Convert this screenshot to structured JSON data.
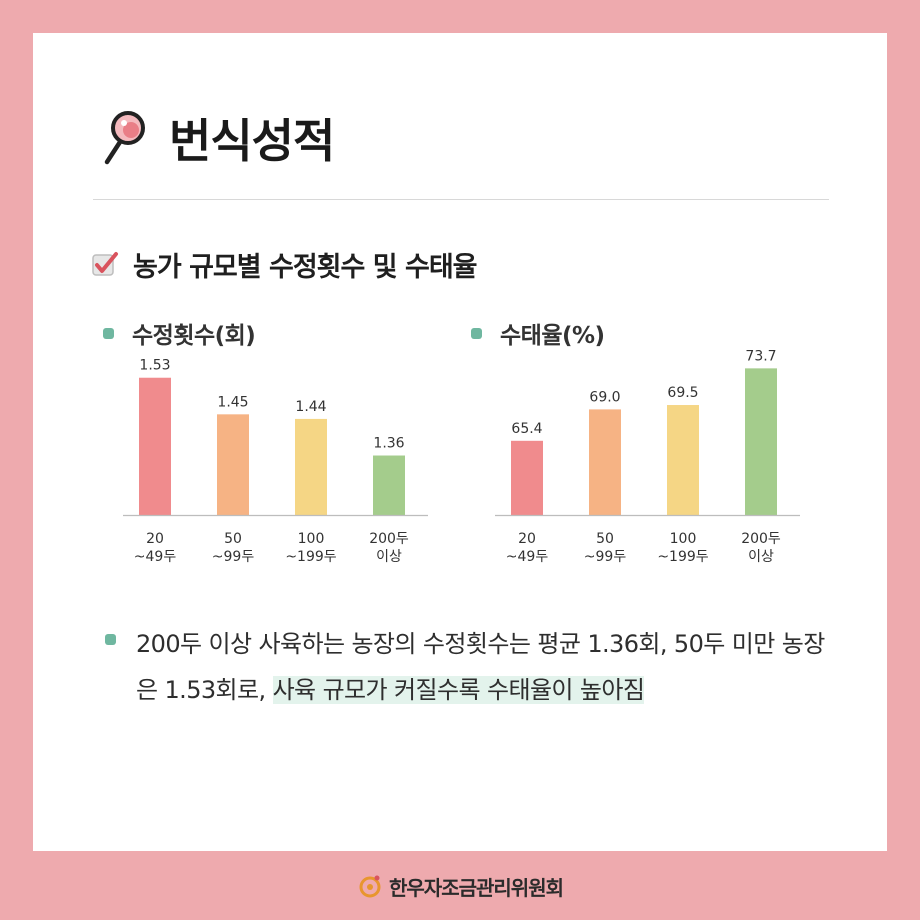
{
  "page": {
    "title": "번식성적",
    "section_title": "농가 규모별 수정횟수 및 수태율",
    "footer_org": "한우자조금관리위원회",
    "colors": {
      "background": "#EEAAAE",
      "card": "#FFFFFF",
      "bullet": "#6FB7A0",
      "highlight": "#E3F3EC"
    },
    "icons": [
      "magnifier-icon",
      "checkbox-icon",
      "hanwoo-logo-icon"
    ]
  },
  "note": {
    "part1": "200두 이상 사육하는 농장의 수정횟수는 평균 1.36회, 50두 미만 농장은 1.53회로, ",
    "highlight": "사육 규모가 커질수록 수태율이 높아짐"
  },
  "chart_data": [
    {
      "type": "bar",
      "title": "수정횟수(회)",
      "categories": [
        [
          "20",
          "~49두"
        ],
        [
          "50",
          "~99두"
        ],
        [
          "100",
          "~199두"
        ],
        [
          "200두",
          "이상"
        ]
      ],
      "values": [
        1.53,
        1.45,
        1.44,
        1.36
      ],
      "value_labels": [
        "1.53",
        "1.45",
        "1.44",
        "1.36"
      ],
      "colors": [
        "#F08B8D",
        "#F6B384",
        "#F5D685",
        "#A4CC8C"
      ],
      "ylim": [
        1.23,
        1.56
      ]
    },
    {
      "type": "bar",
      "title": "수태율(%)",
      "categories": [
        [
          "20",
          "~49두"
        ],
        [
          "50",
          "~99두"
        ],
        [
          "100",
          "~199두"
        ],
        [
          "200두",
          "이상"
        ]
      ],
      "values": [
        65.4,
        69.0,
        69.5,
        73.7
      ],
      "value_labels": [
        "65.4",
        "69.0",
        "69.5",
        "73.7"
      ],
      "colors": [
        "#F08B8D",
        "#F6B384",
        "#F5D685",
        "#A4CC8C"
      ],
      "ylim": [
        56.9,
        74.2
      ]
    }
  ]
}
